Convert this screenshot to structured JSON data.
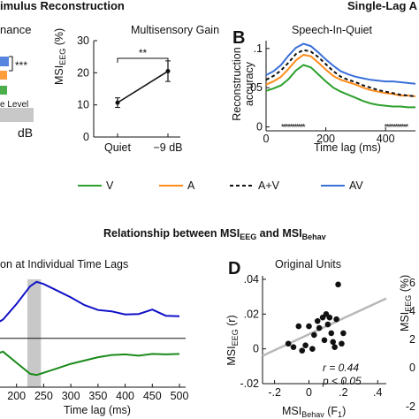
{
  "header": {
    "left_title": "imulus Reconstruction",
    "right_title": "Single-Lag A",
    "panel_b": "B",
    "panel_d": "D",
    "middle_title_prefix": "Relationship between MSI",
    "middle_title_sub1": "EEG",
    "middle_title_mid": " and MSI",
    "middle_title_sub2": "Behav"
  },
  "left_fragment": {
    "label": "nance",
    "sig": "***",
    "level": "e Level",
    "db": "dB"
  },
  "legend": {
    "items": [
      {
        "label": "V",
        "color": "#2ca02c",
        "dash": false
      },
      {
        "label": "A",
        "color": "#ff8c1a",
        "dash": false
      },
      {
        "label": "A+V",
        "color": "#111111",
        "dash": true
      },
      {
        "label": "AV",
        "color": "#3a6fd8",
        "dash": false
      }
    ]
  },
  "bottom_left": {
    "title": "on at Individual Time Lags",
    "xlabel": "Time lag (ms)"
  },
  "right_fragment_ticks": [
    "6",
    "4",
    "2",
    "0",
    "-2"
  ],
  "chart_data": [
    {
      "type": "line",
      "title": "Multisensory Gain",
      "ylabel": "MSI",
      "ylabel_sub": "EEG",
      "ylabel_unit": " (%)",
      "categories": [
        "Quiet",
        "−9 dB"
      ],
      "values": [
        10.7,
        20.5
      ],
      "error": [
        1.5,
        3.2
      ],
      "ylim": [
        0,
        30
      ],
      "yticks": [
        0,
        10,
        20,
        30
      ],
      "annotation": "**"
    },
    {
      "type": "line",
      "title": "Speech-In-Quiet",
      "xlabel": "Time lag (ms)",
      "ylabel": "Reconstruction accuracy",
      "xlim": [
        0,
        500
      ],
      "ylim": [
        -0.005,
        0.11
      ],
      "xticks": [
        0,
        200,
        400
      ],
      "yticks": [
        0,
        0.05,
        0.1
      ],
      "ytick_labels": [
        "0",
        ".05",
        ".1"
      ],
      "x": [
        0,
        25,
        50,
        75,
        100,
        125,
        150,
        175,
        200,
        225,
        250,
        275,
        300,
        325,
        350,
        375,
        400,
        425,
        450,
        475,
        500
      ],
      "series": [
        {
          "name": "V",
          "values": [
            0.046,
            0.049,
            0.053,
            0.061,
            0.072,
            0.079,
            0.076,
            0.067,
            0.058,
            0.05,
            0.045,
            0.041,
            0.037,
            0.033,
            0.03,
            0.028,
            0.027,
            0.026,
            0.026,
            0.025,
            0.025
          ]
        },
        {
          "name": "A",
          "values": [
            0.054,
            0.058,
            0.064,
            0.074,
            0.085,
            0.092,
            0.09,
            0.082,
            0.073,
            0.065,
            0.06,
            0.057,
            0.054,
            0.05,
            0.047,
            0.045,
            0.043,
            0.042,
            0.04,
            0.04,
            0.039
          ]
        },
        {
          "name": "A+V",
          "values": [
            0.06,
            0.065,
            0.072,
            0.082,
            0.093,
            0.098,
            0.096,
            0.089,
            0.08,
            0.071,
            0.064,
            0.06,
            0.057,
            0.053,
            0.05,
            0.047,
            0.045,
            0.043,
            0.041,
            0.04,
            0.039
          ]
        },
        {
          "name": "AV",
          "values": [
            0.066,
            0.071,
            0.079,
            0.091,
            0.101,
            0.106,
            0.103,
            0.095,
            0.086,
            0.078,
            0.071,
            0.067,
            0.064,
            0.062,
            0.06,
            0.059,
            0.058,
            0.058,
            0.057,
            0.056,
            0.055
          ]
        }
      ],
      "sig_markers": "*****************",
      "sig_ranges": [
        [
          50,
          160
        ],
        [
          395,
          500
        ]
      ]
    },
    {
      "type": "line",
      "title": "",
      "xlabel": "Time lag (ms)",
      "xlim": [
        150,
        500
      ],
      "xticks": [
        200,
        250,
        300,
        350,
        400,
        450,
        500
      ],
      "highlight_range": [
        220,
        245
      ],
      "x": [
        150,
        175,
        200,
        225,
        237,
        250,
        275,
        300,
        325,
        350,
        375,
        400,
        425,
        450,
        475,
        500
      ],
      "series": [
        {
          "name": "",
          "color": "#1010c8",
          "values": [
            0.5,
            0.85,
            1.55,
            2.35,
            2.55,
            2.45,
            2.15,
            1.85,
            1.5,
            1.28,
            1.22,
            1.08,
            1.1,
            1.3,
            1.02,
            1.0
          ]
        },
        {
          "name": "",
          "color": "#1a8a1a",
          "values": [
            -0.8,
            -0.6,
            -1.1,
            -1.6,
            -1.65,
            -1.55,
            -1.35,
            -1.15,
            -1.0,
            -0.85,
            -0.75,
            -0.72,
            -0.78,
            -0.7,
            -0.72,
            -0.7
          ]
        }
      ],
      "zero_line": 0
    },
    {
      "type": "scatter",
      "title": "Original Units",
      "xlabel": "MSI",
      "xlabel_sub": "Behav",
      "xlabel_unit": " (F",
      "xlabel_unit_sub": "1",
      "xlabel_close": ")",
      "ylabel": "MSI",
      "ylabel_sub": "EEG",
      "ylabel_unit": " (r)",
      "xlim": [
        -0.27,
        0.45
      ],
      "ylim": [
        -0.02,
        0.042
      ],
      "xticks": [
        -0.2,
        0,
        0.2,
        0.4
      ],
      "xtick_labels": [
        "-.2",
        "0",
        ".2",
        ".4"
      ],
      "yticks": [
        -0.02,
        0,
        0.02,
        0.04
      ],
      "ytick_labels": [
        "-.02",
        "0",
        ".02",
        ".04"
      ],
      "points": [
        [
          -0.12,
          0.003
        ],
        [
          -0.09,
          0.001
        ],
        [
          -0.06,
          0.013
        ],
        [
          -0.04,
          -0.001
        ],
        [
          -0.02,
          0.002
        ],
        [
          0.0,
          0.013
        ],
        [
          0.02,
          0.0
        ],
        [
          0.03,
          0.008
        ],
        [
          0.05,
          0.016
        ],
        [
          0.06,
          0.012
        ],
        [
          0.08,
          0.018
        ],
        [
          0.09,
          0.005
        ],
        [
          0.1,
          0.02
        ],
        [
          0.11,
          0.014
        ],
        [
          0.12,
          0.018
        ],
        [
          0.13,
          0.009
        ],
        [
          0.14,
          0.004
        ],
        [
          0.15,
          0.001
        ],
        [
          0.16,
          0.017
        ],
        [
          0.17,
          0.037
        ],
        [
          0.19,
          0.003
        ],
        [
          0.2,
          0.009
        ]
      ],
      "fit": [
        [
          -0.27,
          -0.004
        ],
        [
          0.45,
          0.029
        ]
      ],
      "stat_r": "r = 0.44",
      "stat_p": "p < 0.05"
    }
  ]
}
